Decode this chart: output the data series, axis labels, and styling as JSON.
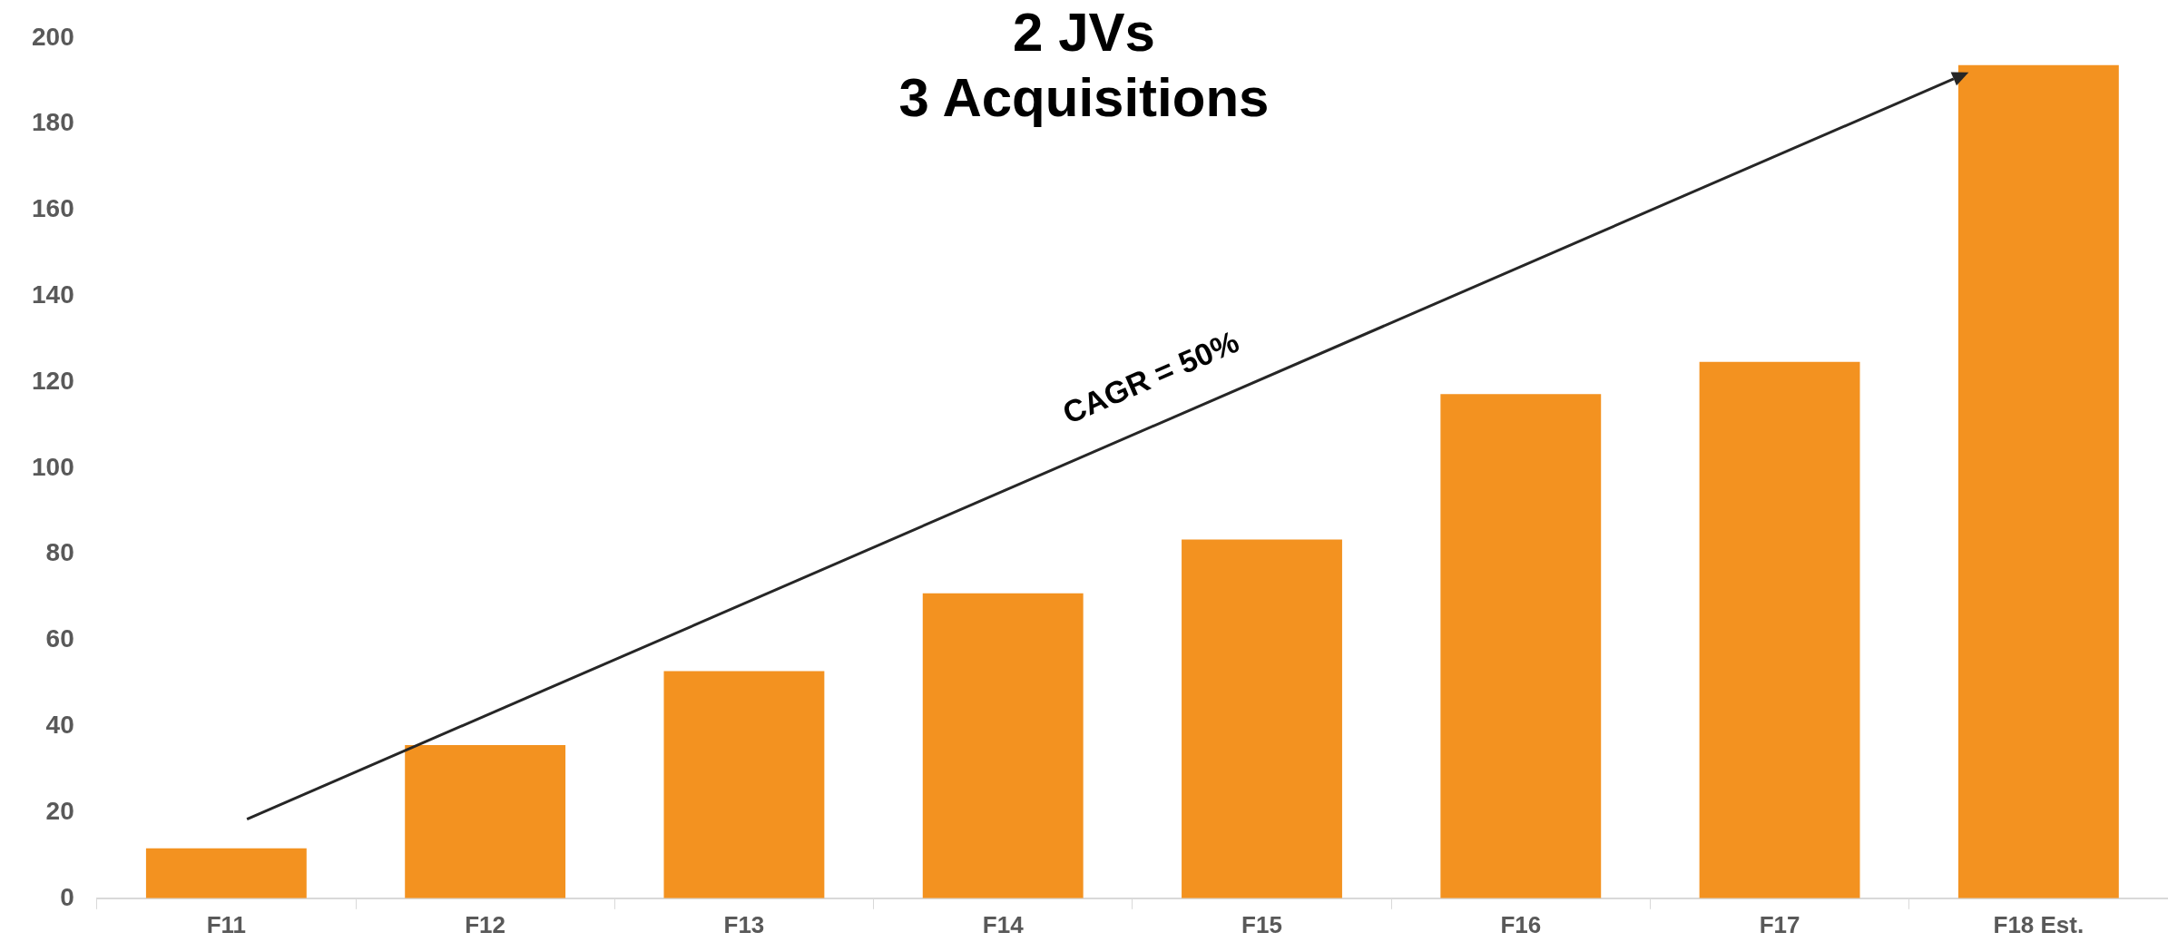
{
  "chart_data": {
    "type": "bar",
    "title": "2 JVs\n3 Acquisitions",
    "categories": [
      "F11",
      "F12",
      "F13",
      "F14",
      "F15",
      "F16",
      "F17",
      "F18 Est."
    ],
    "values": [
      11.6,
      35.6,
      52.8,
      70.9,
      83.4,
      117.2,
      124.7,
      193.7
    ],
    "color": "#f39220",
    "ylim": [
      0,
      200
    ],
    "yticks": [
      0,
      20,
      40,
      60,
      80,
      100,
      120,
      140,
      160,
      180,
      200
    ],
    "grid": false,
    "legend": false,
    "annotations": [
      "CAGR = 50%"
    ]
  }
}
